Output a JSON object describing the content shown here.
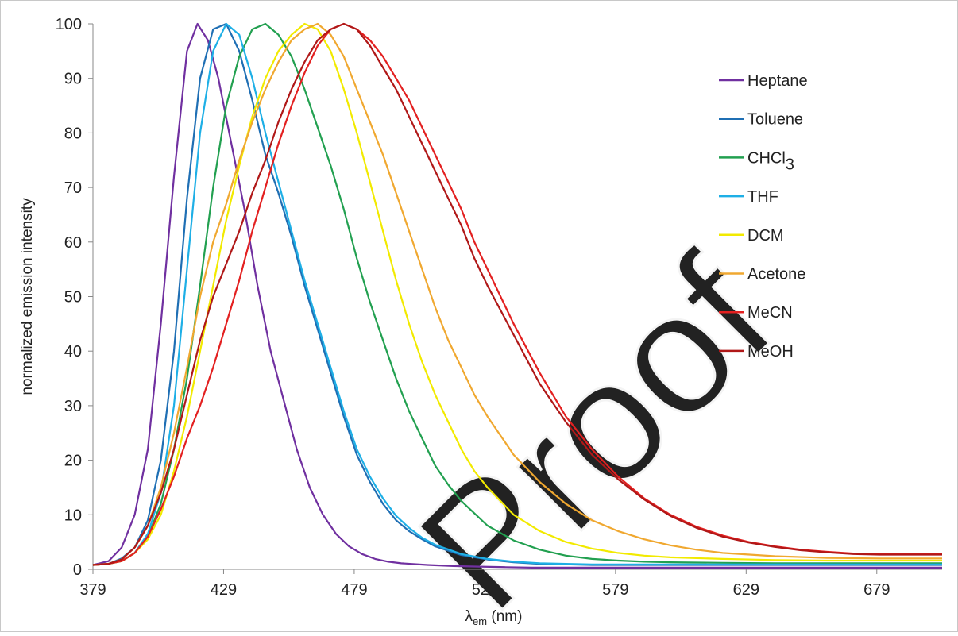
{
  "chart_data": {
    "type": "line",
    "title": "",
    "xlabel": "λem (nm)",
    "xlabel_main": "λ",
    "xlabel_sub": "em",
    "xlabel_unit": " (nm)",
    "ylabel": "normalized emission intensity",
    "xlim": [
      379,
      704
    ],
    "ylim": [
      0,
      100
    ],
    "xticks": [
      379,
      429,
      479,
      529,
      579,
      629,
      679
    ],
    "yticks": [
      0,
      10,
      20,
      30,
      40,
      50,
      60,
      70,
      80,
      90,
      100
    ],
    "grid": false,
    "legend_position": "right",
    "series": [
      {
        "name": "Heptane",
        "color": "#7030A0",
        "x": [
          379,
          385,
          390,
          395,
          400,
          405,
          410,
          415,
          419,
          423,
          427,
          432,
          437,
          442,
          447,
          452,
          457,
          462,
          467,
          472,
          477,
          482,
          487,
          492,
          497,
          507,
          517,
          527,
          537,
          547,
          557,
          567,
          577,
          587,
          597,
          607,
          617,
          627,
          637,
          647,
          657,
          667,
          677,
          687,
          697,
          704
        ],
        "y": [
          0.8,
          1.5,
          4,
          10,
          22,
          45,
          72,
          95,
          100,
          97,
          90,
          78,
          66,
          52,
          40,
          31,
          22,
          15,
          10,
          6.5,
          4.2,
          2.8,
          1.9,
          1.4,
          1.1,
          0.8,
          0.6,
          0.5,
          0.4,
          0.3,
          0.3,
          0.3,
          0.3,
          0.3,
          0.3,
          0.3,
          0.3,
          0.3,
          0.3,
          0.3,
          0.3,
          0.3,
          0.3,
          0.3,
          0.3,
          0.3
        ]
      },
      {
        "name": "Toluene",
        "color": "#1F6FB4",
        "x": [
          379,
          385,
          390,
          395,
          400,
          405,
          410,
          415,
          420,
          425,
          430,
          435,
          440,
          445,
          450,
          455,
          460,
          465,
          470,
          475,
          480,
          485,
          490,
          495,
          500,
          505,
          510,
          520,
          530,
          540,
          550,
          560,
          570,
          580,
          590,
          600,
          610,
          620,
          630,
          640,
          650,
          660,
          670,
          680,
          690,
          704
        ],
        "y": [
          0.8,
          1.0,
          2,
          4,
          9,
          20,
          40,
          68,
          90,
          99,
          100,
          95,
          86,
          76,
          69,
          61,
          52,
          44,
          36,
          28,
          21,
          16,
          12,
          9,
          7,
          5.5,
          4.2,
          2.6,
          1.8,
          1.3,
          1.0,
          0.9,
          0.8,
          0.8,
          0.8,
          0.8,
          0.8,
          0.8,
          0.8,
          0.8,
          0.8,
          0.8,
          0.8,
          0.8,
          0.8,
          0.8
        ]
      },
      {
        "name": "CHCl3",
        "color": "#22A050",
        "x": [
          379,
          385,
          390,
          395,
          400,
          405,
          410,
          415,
          420,
          425,
          430,
          435,
          440,
          445,
          450,
          455,
          460,
          465,
          470,
          475,
          480,
          485,
          490,
          495,
          500,
          505,
          510,
          515,
          520,
          530,
          540,
          550,
          560,
          570,
          580,
          590,
          600,
          620,
          640,
          660,
          680,
          704
        ],
        "y": [
          0.8,
          1.0,
          1.5,
          3,
          6,
          12,
          22,
          35,
          52,
          70,
          85,
          94,
          99,
          100,
          98,
          94,
          88,
          81,
          74,
          66,
          57,
          49,
          42,
          35,
          29,
          24,
          19,
          15.5,
          12.5,
          8,
          5.3,
          3.6,
          2.5,
          1.9,
          1.6,
          1.4,
          1.3,
          1.2,
          1.1,
          1.1,
          1.1,
          1.1
        ]
      },
      {
        "name": "THF",
        "color": "#1EAFE6",
        "x": [
          379,
          385,
          390,
          395,
          400,
          405,
          410,
          415,
          420,
          425,
          430,
          435,
          440,
          445,
          450,
          455,
          460,
          465,
          470,
          475,
          480,
          485,
          490,
          495,
          500,
          505,
          510,
          520,
          530,
          540,
          550,
          560,
          570,
          580,
          590,
          600,
          610,
          620,
          630,
          640,
          650,
          660,
          670,
          680,
          690,
          704
        ],
        "y": [
          0.8,
          1.0,
          1.5,
          3,
          6.5,
          14,
          30,
          55,
          80,
          95,
          100,
          98,
          90,
          80,
          71,
          62,
          53,
          45,
          37,
          29,
          22,
          17,
          13,
          9.8,
          7.6,
          5.8,
          4.5,
          2.8,
          1.9,
          1.4,
          1.1,
          1.0,
          0.9,
          0.9,
          0.9,
          0.9,
          0.9,
          0.9,
          0.9,
          0.9,
          0.9,
          0.9,
          0.9,
          0.9,
          0.9,
          0.9
        ]
      },
      {
        "name": "DCM",
        "color": "#F2EA00",
        "x": [
          379,
          385,
          390,
          395,
          400,
          405,
          410,
          415,
          420,
          425,
          430,
          435,
          440,
          445,
          450,
          455,
          460,
          465,
          470,
          475,
          480,
          485,
          490,
          495,
          500,
          505,
          510,
          515,
          520,
          525,
          530,
          540,
          550,
          560,
          570,
          580,
          590,
          600,
          620,
          640,
          660,
          680,
          704
        ],
        "y": [
          0.8,
          1.0,
          1.5,
          3,
          5.5,
          10,
          18,
          28,
          40,
          52,
          64,
          74,
          83,
          90,
          95,
          98,
          100,
          99,
          95,
          88,
          80,
          71,
          62,
          53,
          45,
          38,
          32,
          27,
          22,
          18,
          15,
          10,
          7,
          5,
          3.8,
          3.0,
          2.5,
          2.2,
          1.9,
          1.7,
          1.6,
          1.6,
          1.6
        ]
      },
      {
        "name": "Acetone",
        "color": "#F0A830",
        "x": [
          379,
          385,
          390,
          395,
          400,
          405,
          410,
          415,
          420,
          425,
          430,
          435,
          440,
          445,
          450,
          455,
          460,
          465,
          470,
          475,
          480,
          485,
          490,
          495,
          500,
          505,
          510,
          515,
          520,
          525,
          530,
          540,
          550,
          560,
          570,
          580,
          590,
          600,
          610,
          620,
          640,
          660,
          680,
          704
        ],
        "y": [
          0.8,
          1.0,
          1.8,
          4,
          8,
          15,
          25,
          37,
          50,
          60,
          67,
          75,
          82,
          88,
          93,
          97,
          99,
          100,
          98,
          94,
          88,
          82,
          76,
          69,
          62,
          55,
          48,
          42,
          37,
          32,
          28,
          21,
          16,
          12,
          9,
          7,
          5.5,
          4.4,
          3.6,
          3.0,
          2.4,
          2.1,
          2.0,
          2.0
        ]
      },
      {
        "name": "MeCN",
        "color": "#E32020",
        "x": [
          379,
          385,
          390,
          395,
          400,
          405,
          410,
          415,
          420,
          425,
          430,
          435,
          440,
          445,
          450,
          455,
          460,
          465,
          470,
          475,
          480,
          485,
          490,
          495,
          500,
          505,
          510,
          515,
          520,
          525,
          530,
          540,
          550,
          560,
          570,
          580,
          590,
          600,
          610,
          620,
          630,
          640,
          650,
          660,
          670,
          680,
          690,
          704
        ],
        "y": [
          0.8,
          1.0,
          1.5,
          3,
          6,
          11,
          17,
          24,
          30,
          37,
          45,
          53,
          62,
          70,
          78,
          85,
          91,
          96,
          99,
          100,
          99,
          97,
          94,
          90,
          86,
          81,
          76,
          71,
          66,
          60,
          55,
          45,
          36,
          28,
          22,
          17,
          13,
          10,
          7.8,
          6.2,
          5,
          4.2,
          3.6,
          3.2,
          2.9,
          2.8,
          2.8,
          2.8
        ]
      },
      {
        "name": "MeOH",
        "color": "#B01818",
        "x": [
          379,
          385,
          390,
          395,
          400,
          405,
          410,
          415,
          420,
          425,
          430,
          435,
          440,
          445,
          450,
          455,
          460,
          465,
          470,
          475,
          480,
          485,
          490,
          495,
          500,
          505,
          510,
          515,
          520,
          525,
          530,
          540,
          550,
          560,
          570,
          580,
          590,
          600,
          610,
          620,
          630,
          640,
          650,
          660,
          670,
          680,
          690,
          704
        ],
        "y": [
          0.8,
          1.0,
          1.8,
          4,
          8,
          14,
          22,
          32,
          42,
          50,
          56,
          62,
          69,
          75,
          82,
          88,
          93,
          97,
          99,
          100,
          99,
          96,
          92,
          88,
          83,
          78,
          73,
          68,
          63,
          57,
          52,
          43,
          34,
          27,
          21,
          16.5,
          12.8,
          9.8,
          7.6,
          6.0,
          4.9,
          4.1,
          3.5,
          3.1,
          2.8,
          2.7,
          2.7,
          2.7
        ]
      }
    ],
    "legend": [
      {
        "label": "Heptane",
        "sub": ""
      },
      {
        "label": "Toluene",
        "sub": ""
      },
      {
        "label": "CHCl",
        "sub": "3"
      },
      {
        "label": "THF",
        "sub": ""
      },
      {
        "label": "DCM",
        "sub": ""
      },
      {
        "label": "Acetone",
        "sub": ""
      },
      {
        "label": "MeCN",
        "sub": ""
      },
      {
        "label": "MeOH",
        "sub": ""
      }
    ]
  },
  "watermark": {
    "text": "Proof"
  }
}
